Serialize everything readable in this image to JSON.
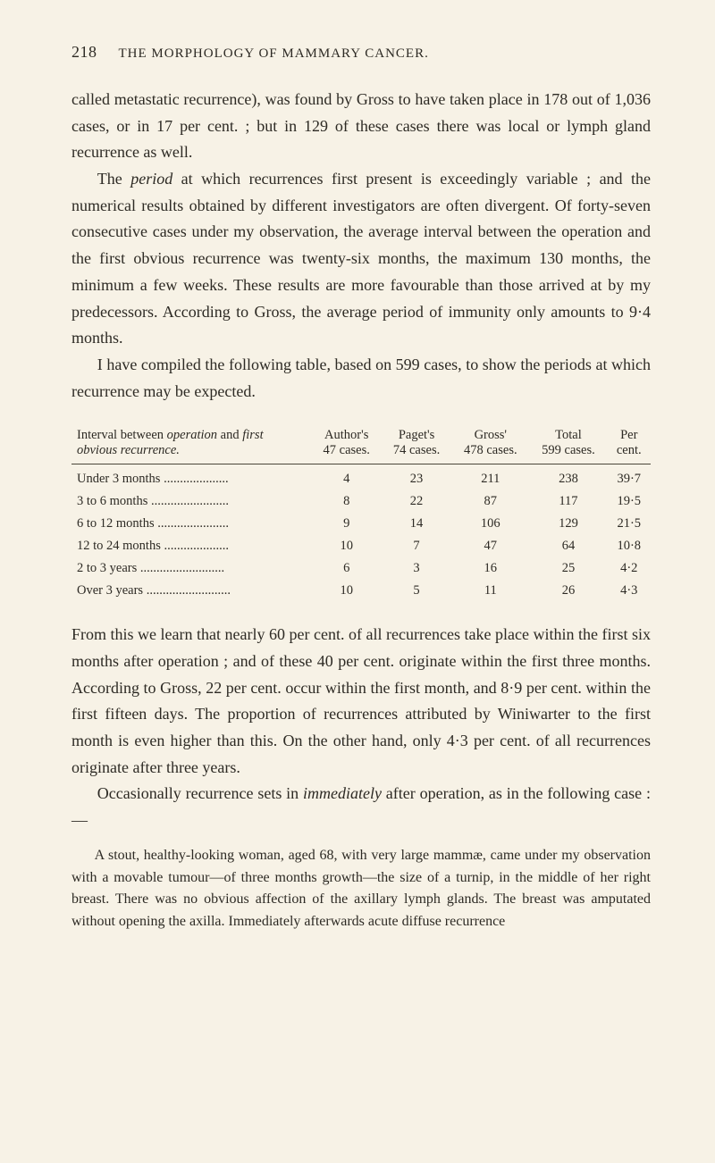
{
  "page_number": "218",
  "running_title": "THE MORPHOLOGY OF MAMMARY CANCER.",
  "para1_a": "called metastatic recurrence), was found by Gross to have taken place in 178 out of 1,036 cases, or in 17 per cent. ; but in 129 of these cases there was local or lymph gland recurrence as well.",
  "para2_lead": "The ",
  "para2_em": "period",
  "para2_rest": " at which recurrences first present is exceedingly variable ; and the numerical results obtained by different investigators are often divergent. Of forty-seven consecutive cases under my observation, the average interval between the operation and the first obvious recurrence was twenty-six months, the maximum 130 months, the minimum a few weeks. These results are more favourable than those arrived at by my predecessors. According to Gross, the average period of immunity only amounts to 9·4 months.",
  "para3": "I have compiled the following table, based on 599 cases, to show the periods at which recurrence may be expected.",
  "table": {
    "col_label_header_l1": "Interval between ",
    "col_label_header_em1": "operation",
    "col_label_header_mid": " and ",
    "col_label_header_em2": "first",
    "col_label_header_l2_em": "obvious recurrence.",
    "col2_l1": "Author's",
    "col2_l2": "47 cases.",
    "col3_l1": "Paget's",
    "col3_l2": "74 cases.",
    "col4_l1": "Gross'",
    "col4_l2": "478 cases.",
    "col5_l1": "Total",
    "col5_l2": "599 cases.",
    "col6_l1": "Per",
    "col6_l2": "cent.",
    "rows": [
      {
        "label": "Under 3 months",
        "c2": "4",
        "c3": "23",
        "c4": "211",
        "c5": "238",
        "c6": "39·7"
      },
      {
        "label": "3 to 6 months",
        "c2": "8",
        "c3": "22",
        "c4": "87",
        "c5": "117",
        "c6": "19·5"
      },
      {
        "label": "6 to 12 months",
        "c2": "9",
        "c3": "14",
        "c4": "106",
        "c5": "129",
        "c6": "21·5"
      },
      {
        "label": "12 to 24 months",
        "c2": "10",
        "c3": "7",
        "c4": "47",
        "c5": "64",
        "c6": "10·8"
      },
      {
        "label": "2 to 3 years",
        "c2": "6",
        "c3": "3",
        "c4": "16",
        "c5": "25",
        "c6": "4·2"
      },
      {
        "label": "Over 3 years",
        "c2": "10",
        "c3": "5",
        "c4": "11",
        "c5": "26",
        "c6": "4·3"
      }
    ]
  },
  "para4": "From this we learn that nearly 60 per cent. of all recurrences take place within the first six months after operation ; and of these 40 per cent. originate within the first three months. According to Gross, 22 per cent. occur within the first month, and 8·9 per cent. within the first fifteen days. The proportion of recurrences attributed by Winiwarter to the first month is even higher than this. On the other hand, only 4·3 per cent. of all recurrences originate after three years.",
  "para5_lead": "Occasionally recurrence sets in ",
  "para5_em": "immediately",
  "para5_rest": " after operation, as in the following case :—",
  "case": "A stout, healthy-looking woman, aged 68, with very large mammæ, came under my observation with a movable tumour—of three months growth—the size of a turnip, in the middle of her right breast. There was no obvious affection of the axillary lymph glands. The breast was amputated without opening the axilla. Immediately afterwards acute diffuse recurrence"
}
